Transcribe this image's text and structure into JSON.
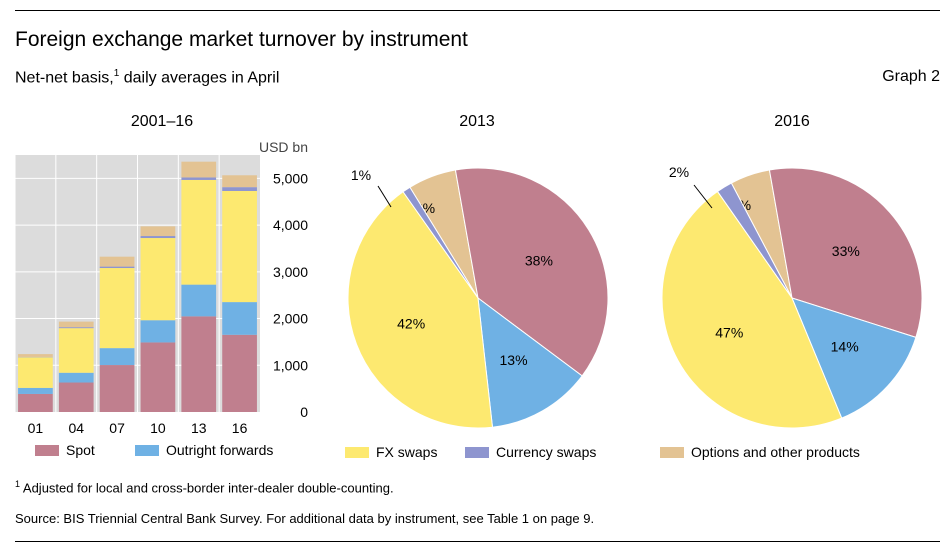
{
  "header": {
    "title": "Foreign exchange market turnover by instrument",
    "subtitle_pre": "Net-net basis,",
    "subtitle_sup": "1",
    "subtitle_post": " daily averages in April",
    "graph_label": "Graph 2"
  },
  "panels": {
    "bar_title": "2001–16",
    "pie1_title": "2013",
    "pie2_title": "2016"
  },
  "legend": {
    "spot": "Spot",
    "outright": "Outright forwards",
    "fxswaps": "FX swaps",
    "currency": "Currency swaps",
    "options": "Options and other products"
  },
  "footnotes": {
    "note_sup": "1",
    "note_text": "  Adjusted for local and cross-border inter-dealer double-counting.",
    "source": "Source: BIS Triennial Central Bank Survey. For additional data by instrument, see Table 1 on page 9."
  },
  "colors": {
    "spot": "#c07f8e",
    "outright": "#6fb1e4",
    "fxswaps": "#fde970",
    "currency": "#8e95cf",
    "options": "#e3c393",
    "plot_bg": "#dcdcdc"
  },
  "chart_data": [
    {
      "type": "bar",
      "stacked": true,
      "categories": [
        "01",
        "04",
        "07",
        "10",
        "13",
        "16"
      ],
      "ylabel": "USD bn",
      "ylim": [
        0,
        5500
      ],
      "yticks": [
        0,
        1000,
        2000,
        3000,
        4000,
        5000
      ],
      "ytick_labels": [
        "0",
        "1,000",
        "2,000",
        "3,000",
        "4,000",
        "5,000"
      ],
      "series": [
        {
          "name": "Spot",
          "color_key": "spot",
          "values": [
            386,
            631,
            1005,
            1489,
            2047,
            1652
          ]
        },
        {
          "name": "Outright forwards",
          "color_key": "outright",
          "values": [
            130,
            209,
            362,
            475,
            679,
            700
          ]
        },
        {
          "name": "FX swaps",
          "color_key": "fxswaps",
          "values": [
            656,
            954,
            1714,
            1759,
            2240,
            2378
          ]
        },
        {
          "name": "Currency swaps",
          "color_key": "currency",
          "values": [
            7,
            21,
            31,
            43,
            54,
            82
          ]
        },
        {
          "name": "Options and other products",
          "color_key": "options",
          "values": [
            60,
            119,
            212,
            207,
            337,
            254
          ]
        }
      ]
    },
    {
      "type": "pie",
      "title": "2013",
      "slices": [
        {
          "name": "Spot",
          "value": 38,
          "label": "38%",
          "color_key": "spot"
        },
        {
          "name": "Outright forwards",
          "value": 13,
          "label": "13%",
          "color_key": "outright"
        },
        {
          "name": "FX swaps",
          "value": 42,
          "label": "42%",
          "color_key": "fxswaps"
        },
        {
          "name": "Currency swaps",
          "value": 1,
          "label": "1%",
          "color_key": "currency"
        },
        {
          "name": "Options and other products",
          "value": 6,
          "label": "6%",
          "color_key": "options"
        }
      ]
    },
    {
      "type": "pie",
      "title": "2016",
      "slices": [
        {
          "name": "Spot",
          "value": 33,
          "label": "33%",
          "color_key": "spot"
        },
        {
          "name": "Outright forwards",
          "value": 14,
          "label": "14%",
          "color_key": "outright"
        },
        {
          "name": "FX swaps",
          "value": 47,
          "label": "47%",
          "color_key": "fxswaps"
        },
        {
          "name": "Currency swaps",
          "value": 2,
          "label": "2%",
          "color_key": "currency"
        },
        {
          "name": "Options and other products",
          "value": 5,
          "label": "5%",
          "color_key": "options"
        }
      ]
    }
  ]
}
